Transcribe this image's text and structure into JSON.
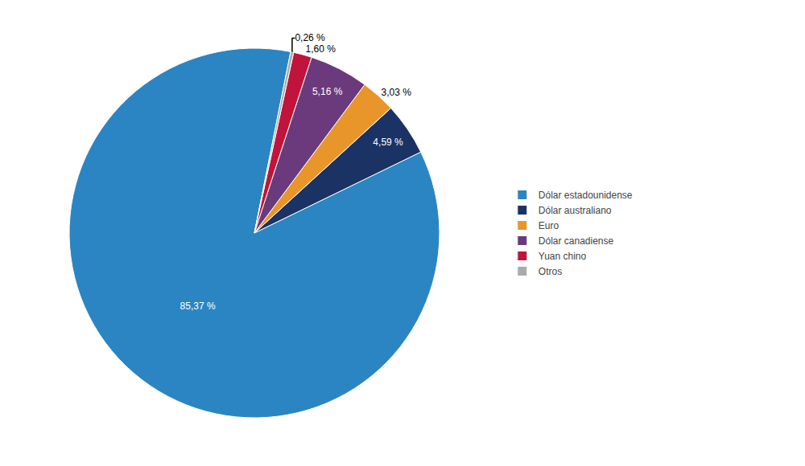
{
  "chart_data": {
    "type": "pie",
    "categories": [
      "Dólar estadounidense",
      "Dólar australiano",
      "Euro",
      "Dólar canadiense",
      "Yuan chino",
      "Otros"
    ],
    "values": [
      85.37,
      4.59,
      3.03,
      5.16,
      1.6,
      0.26
    ],
    "value_labels": [
      "85,37 %",
      "4,59 %",
      "3,03 %",
      "5,16 %",
      "1,60 %",
      "0,26 %"
    ],
    "colors": [
      "#2B85C2",
      "#1B3264",
      "#E8962A",
      "#6B3A7D",
      "#C0143C",
      "#AAAAAA"
    ],
    "data_labels": true,
    "legend": "right"
  }
}
